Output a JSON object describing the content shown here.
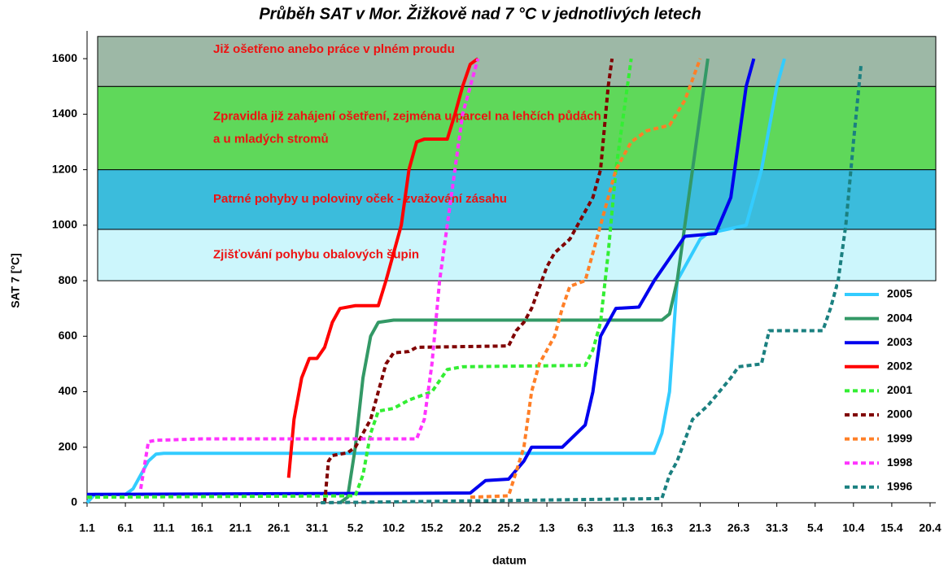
{
  "chart_data": {
    "type": "line",
    "title": "Průběh SAT v Mor. Žižkově nad 7 °C v jednotlivých letech",
    "x_label": "datum",
    "y_label": "SAT 7 [°C]",
    "xlim": [
      0,
      110
    ],
    "xticks": [
      {
        "value": 0,
        "label": "1.1"
      },
      {
        "value": 5,
        "label": "6.1"
      },
      {
        "value": 10,
        "label": "11.1"
      },
      {
        "value": 15,
        "label": "16.1"
      },
      {
        "value": 20,
        "label": "21.1"
      },
      {
        "value": 25,
        "label": "26.1"
      },
      {
        "value": 30,
        "label": "31.1"
      },
      {
        "value": 35,
        "label": "5.2"
      },
      {
        "value": 40,
        "label": "10.2"
      },
      {
        "value": 45,
        "label": "15.2"
      },
      {
        "value": 50,
        "label": "20.2"
      },
      {
        "value": 55,
        "label": "25.2"
      },
      {
        "value": 60,
        "label": "1.3"
      },
      {
        "value": 65,
        "label": "6.3"
      },
      {
        "value": 70,
        "label": "11.3"
      },
      {
        "value": 75,
        "label": "16.3"
      },
      {
        "value": 80,
        "label": "21.3"
      },
      {
        "value": 85,
        "label": "26.3"
      },
      {
        "value": 90,
        "label": "31.3"
      },
      {
        "value": 95,
        "label": "5.4"
      },
      {
        "value": 100,
        "label": "10.4"
      },
      {
        "value": 105,
        "label": "15.4"
      },
      {
        "value": 110,
        "label": "20.4"
      }
    ],
    "ylim": [
      0,
      1700
    ],
    "yticks": [
      0,
      200,
      400,
      600,
      800,
      1000,
      1200,
      1400,
      1600
    ],
    "bands": [
      {
        "text": [
          "Zjišťování pohybu obalových šupin"
        ],
        "ylim": [
          800,
          985
        ],
        "color": "#ccf6fc"
      },
      {
        "text": [
          "Patrné pohyby u poloviny oček - zvažování zásahu"
        ],
        "ylim": [
          985,
          1200
        ],
        "color": "#3bbcdc"
      },
      {
        "text": [
          "Zpravidla již zahájení ošetření, zejména u parcel na lehčích půdách",
          "a u mladých stromů"
        ],
        "ylim": [
          1200,
          1500
        ],
        "color": "#5fd85a"
      },
      {
        "text": [
          "Již ošetřeno anebo práce v plném proudu"
        ],
        "ylim": [
          1500,
          1680
        ],
        "color": "#9db8a6"
      }
    ],
    "series": [
      {
        "name": "2005",
        "color": "#33ccff",
        "dash": false,
        "x": [
          0,
          1,
          5,
          6,
          7,
          8,
          9,
          10,
          74,
          75,
          76,
          77,
          80,
          81,
          86,
          88,
          90,
          91
        ],
        "values": [
          0,
          30,
          30,
          50,
          100,
          150,
          175,
          178,
          178,
          250,
          400,
          800,
          950,
          970,
          1000,
          1200,
          1500,
          1600
        ]
      },
      {
        "name": "2004",
        "color": "#339966",
        "dash": false,
        "x": [
          33,
          34,
          35,
          36,
          37,
          38,
          40,
          75,
          76,
          77,
          78,
          79,
          80,
          81
        ],
        "values": [
          0,
          20,
          200,
          450,
          600,
          650,
          658,
          658,
          680,
          800,
          1000,
          1200,
          1400,
          1600
        ]
      },
      {
        "name": "2003",
        "color": "#0000ee",
        "dash": false,
        "x": [
          0,
          1,
          50,
          52,
          55,
          57,
          58,
          62,
          65,
          66,
          67,
          69,
          72,
          74,
          78,
          82,
          84,
          85,
          86,
          87
        ],
        "values": [
          30,
          30,
          35,
          80,
          85,
          150,
          200,
          200,
          280,
          400,
          600,
          700,
          705,
          800,
          960,
          970,
          1100,
          1300,
          1500,
          1600
        ]
      },
      {
        "name": "2002",
        "color": "#ff0000",
        "dash": false,
        "x": [
          26.3,
          27,
          28,
          29,
          30,
          31,
          32,
          33,
          35,
          38,
          39,
          41,
          42,
          43,
          44,
          47,
          48,
          49,
          50,
          51
        ],
        "values": [
          90,
          300,
          450,
          520,
          520,
          560,
          650,
          700,
          710,
          710,
          800,
          1000,
          1200,
          1300,
          1310,
          1310,
          1400,
          1500,
          1580,
          1600
        ]
      },
      {
        "name": "2001",
        "color": "#33ee33",
        "dash": true,
        "x": [
          0,
          35,
          36,
          37,
          38,
          40,
          42,
          45,
          47,
          49,
          65,
          66,
          67,
          68,
          69,
          70,
          71
        ],
        "values": [
          20,
          25,
          100,
          250,
          330,
          340,
          370,
          400,
          480,
          490,
          495,
          550,
          650,
          900,
          1200,
          1400,
          1600
        ]
      },
      {
        "name": "2000",
        "color": "#800000",
        "dash": true,
        "x": [
          31,
          31.5,
          32,
          34,
          35,
          36,
          37,
          38,
          39,
          40,
          42,
          43,
          55,
          56,
          57,
          58,
          60,
          61,
          63,
          65,
          66,
          67,
          68,
          68.5
        ],
        "values": [
          0,
          150,
          170,
          180,
          200,
          250,
          300,
          400,
          500,
          540,
          545,
          560,
          565,
          620,
          650,
          700,
          850,
          900,
          950,
          1050,
          1100,
          1200,
          1500,
          1600
        ]
      },
      {
        "name": "1999",
        "color": "#ff7f27",
        "dash": true,
        "x": [
          50,
          55,
          57,
          58,
          59,
          61,
          62,
          63,
          65,
          67,
          69,
          71,
          73,
          76,
          78,
          80
        ],
        "values": [
          20,
          25,
          200,
          400,
          500,
          600,
          700,
          780,
          800,
          1000,
          1200,
          1300,
          1340,
          1360,
          1450,
          1600
        ]
      },
      {
        "name": "1998",
        "color": "#ff33ff",
        "dash": true,
        "x": [
          7,
          8,
          9,
          15,
          43,
          44,
          45,
          46,
          47,
          48,
          49,
          50,
          51
        ],
        "values": [
          50,
          220,
          225,
          230,
          230,
          300,
          500,
          800,
          1000,
          1200,
          1400,
          1500,
          1600
        ]
      },
      {
        "name": "1996",
        "color": "#1b8080",
        "dash": true,
        "x": [
          30.5,
          75,
          76,
          77,
          79,
          81,
          84,
          85,
          88,
          89,
          96,
          97,
          98,
          99,
          100,
          101
        ],
        "values": [
          0,
          15,
          100,
          150,
          300,
          350,
          450,
          490,
          500,
          620,
          620,
          700,
          800,
          1000,
          1300,
          1580
        ]
      }
    ]
  }
}
